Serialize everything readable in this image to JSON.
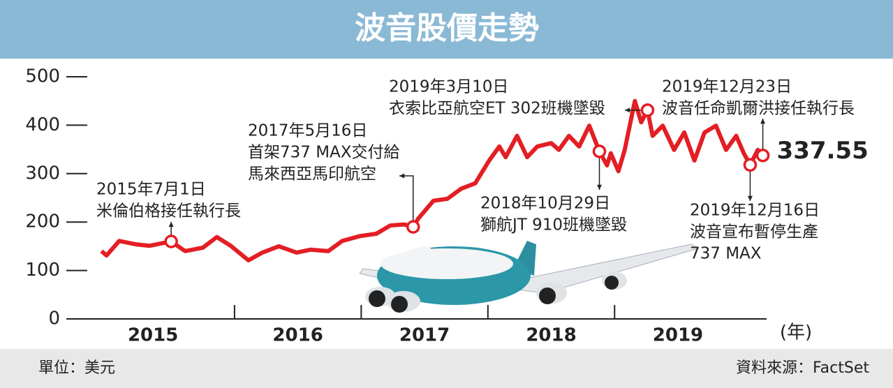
{
  "chart_data": {
    "type": "line",
    "title": "波音股價走勢",
    "x": [
      2014.95,
      2014.99,
      2015.09,
      2015.22,
      2015.33,
      2015.5,
      2015.61,
      2015.75,
      2015.86,
      2015.97,
      2016.11,
      2016.22,
      2016.35,
      2016.49,
      2016.6,
      2016.74,
      2016.85,
      2016.99,
      2017.12,
      2017.23,
      2017.34,
      2017.41,
      2017.45,
      2017.57,
      2017.68,
      2017.79,
      2017.9,
      2018.01,
      2018.09,
      2018.14,
      2018.23,
      2018.31,
      2018.39,
      2018.5,
      2018.56,
      2018.64,
      2018.72,
      2018.8,
      2018.88,
      2018.94,
      2018.97,
      2019.03,
      2019.08,
      2019.16,
      2019.21,
      2019.26,
      2019.3,
      2019.38,
      2019.47,
      2019.55,
      2019.63,
      2019.71,
      2019.8,
      2019.88,
      2019.96,
      2020.02,
      2020.07,
      2020.13,
      2020.17
    ],
    "series": [
      {
        "name": "波音股價",
        "color": "#e31e24",
        "values": [
          140,
          131,
          161,
          154,
          151,
          160,
          140,
          147,
          169,
          151,
          121,
          137,
          150,
          137,
          143,
          140,
          161,
          171,
          176,
          193,
          195,
          190,
          207,
          244,
          248,
          269,
          280,
          327,
          356,
          334,
          378,
          334,
          356,
          363,
          349,
          378,
          356,
          399,
          346,
          317,
          342,
          305,
          349,
          450,
          406,
          431,
          378,
          399,
          349,
          385,
          327,
          385,
          399,
          349,
          378,
          342,
          318,
          349,
          337.55
        ],
        "value_labels": [
          null,
          null,
          null,
          null,
          null,
          null,
          null,
          null,
          null,
          null,
          null,
          null,
          null,
          null,
          null,
          null,
          null,
          null,
          null,
          null,
          null,
          null,
          null,
          null,
          null,
          null,
          null,
          null,
          null,
          null,
          null,
          null,
          null,
          null,
          null,
          null,
          null,
          null,
          null,
          null,
          null,
          null,
          null,
          null,
          null,
          null,
          null,
          null,
          null,
          null,
          null,
          null,
          null,
          null,
          null,
          null,
          null,
          null,
          "337.55"
        ]
      }
    ],
    "xlim": [
      2014.7,
      2020.2
    ],
    "xticks": [
      {
        "value": 2015.5,
        "label": "2015"
      },
      {
        "value": 2016.5,
        "label": "2016"
      },
      {
        "value": 2017.5,
        "label": "2017"
      },
      {
        "value": 2018.5,
        "label": "2018"
      },
      {
        "value": 2019.5,
        "label": "2019"
      }
    ],
    "x_label": "(年)",
    "ylim": [
      0,
      500
    ],
    "yticks": [
      0,
      100,
      200,
      300,
      400,
      500
    ],
    "annotations": [
      {
        "lines": [
          "2015年7月1日",
          "米倫伯格接任執行長"
        ]
      },
      {
        "lines": [
          "2017年5月16日",
          "首架737 MAX交付給",
          "馬來西亞馬印航空"
        ]
      },
      {
        "lines": [
          "2018年10月29日",
          "獅航JT 910班機墜毀"
        ]
      },
      {
        "lines": [
          "2019年3月10日",
          "衣索比亞航空ET 302班機墜毀"
        ]
      },
      {
        "lines": [
          "2019年12月16日",
          "波音宣布暫停生產",
          "737 MAX"
        ]
      },
      {
        "lines": [
          "2019年12月23日",
          "波音任命凱爾洪接任執行長"
        ]
      }
    ],
    "unit_note": "單位：美元",
    "source": "資料來源：FactSet"
  }
}
